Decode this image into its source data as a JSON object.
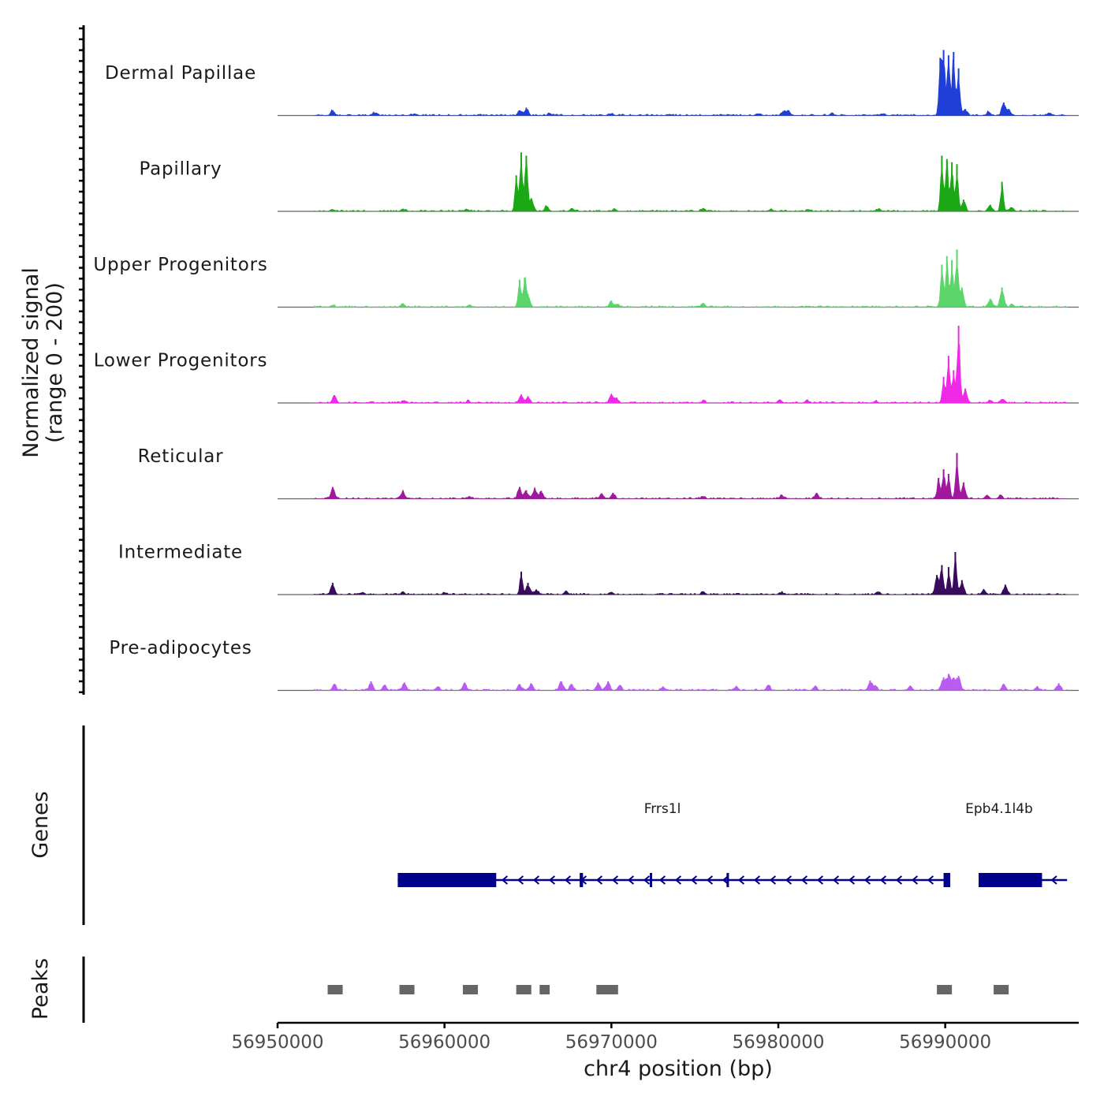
{
  "chart_data": {
    "type": "area",
    "title": "",
    "xlabel": "chr4 position (bp)",
    "ylabel_line1": "Normalized signal",
    "ylabel_line2": "(range 0 - 200)",
    "xlim": [
      56950000,
      56998000
    ],
    "ylim": [
      0,
      200
    ],
    "x_ticks": [
      "56950000",
      "56960000",
      "56970000",
      "56980000",
      "56990000"
    ],
    "x_tick_values": [
      56950000,
      56960000,
      56970000,
      56980000,
      56990000
    ],
    "data_extent": [
      56952200,
      56997300
    ],
    "tracks": [
      {
        "name": "Dermal Papillae",
        "color": "#1f3fd6",
        "peaks": [
          [
            56953300,
            8
          ],
          [
            56955800,
            4
          ],
          [
            56958200,
            3
          ],
          [
            56964500,
            8
          ],
          [
            56964900,
            12
          ],
          [
            56966300,
            4
          ],
          [
            56970000,
            3
          ],
          [
            56973500,
            2
          ],
          [
            56978800,
            3
          ],
          [
            56980300,
            7
          ],
          [
            56980600,
            8
          ],
          [
            56983200,
            3
          ],
          [
            56986200,
            3
          ],
          [
            56989700,
            88
          ],
          [
            56989900,
            100
          ],
          [
            56990200,
            92
          ],
          [
            56990500,
            97
          ],
          [
            56990800,
            72
          ],
          [
            56991200,
            10
          ],
          [
            56992600,
            6
          ],
          [
            56993500,
            20
          ],
          [
            56993800,
            10
          ],
          [
            56996200,
            3
          ]
        ]
      },
      {
        "name": "Papillary",
        "color": "#1ca814",
        "peaks": [
          [
            56953300,
            3
          ],
          [
            56957500,
            4
          ],
          [
            56961400,
            3
          ],
          [
            56964300,
            55
          ],
          [
            56964600,
            90
          ],
          [
            56964900,
            85
          ],
          [
            56965200,
            20
          ],
          [
            56966100,
            8
          ],
          [
            56967600,
            4
          ],
          [
            56970200,
            4
          ],
          [
            56975500,
            5
          ],
          [
            56979600,
            3
          ],
          [
            56981800,
            3
          ],
          [
            56986000,
            3
          ],
          [
            56989800,
            85
          ],
          [
            56990100,
            80
          ],
          [
            56990400,
            75
          ],
          [
            56990700,
            72
          ],
          [
            56991100,
            18
          ],
          [
            56992700,
            10
          ],
          [
            56993400,
            45
          ],
          [
            56994000,
            6
          ]
        ]
      },
      {
        "name": "Upper Progenitors",
        "color": "#5cd66a",
        "peaks": [
          [
            56953300,
            3
          ],
          [
            56957500,
            6
          ],
          [
            56961500,
            4
          ],
          [
            56964500,
            42
          ],
          [
            56964800,
            45
          ],
          [
            56965000,
            20
          ],
          [
            56970000,
            10
          ],
          [
            56970400,
            5
          ],
          [
            56975500,
            6
          ],
          [
            56989800,
            65
          ],
          [
            56990100,
            78
          ],
          [
            56990400,
            72
          ],
          [
            56990700,
            88
          ],
          [
            56991000,
            30
          ],
          [
            56992700,
            13
          ],
          [
            56993400,
            30
          ],
          [
            56994000,
            5
          ]
        ]
      },
      {
        "name": "Lower Progenitors",
        "color": "#f028e8",
        "peaks": [
          [
            56953400,
            12
          ],
          [
            56957600,
            4
          ],
          [
            56961400,
            3
          ],
          [
            56964600,
            13
          ],
          [
            56965000,
            10
          ],
          [
            56970000,
            12
          ],
          [
            56970300,
            8
          ],
          [
            56975500,
            3
          ],
          [
            56980100,
            5
          ],
          [
            56981700,
            4
          ],
          [
            56985800,
            3
          ],
          [
            56989900,
            40
          ],
          [
            56990200,
            72
          ],
          [
            56990500,
            50
          ],
          [
            56990800,
            118
          ],
          [
            56991200,
            22
          ],
          [
            56992700,
            4
          ],
          [
            56993400,
            6
          ]
        ]
      },
      {
        "name": "Reticular",
        "color": "#a0189e",
        "peaks": [
          [
            56953300,
            18
          ],
          [
            56957500,
            12
          ],
          [
            56961500,
            4
          ],
          [
            56964500,
            18
          ],
          [
            56964900,
            13
          ],
          [
            56965400,
            16
          ],
          [
            56965800,
            12
          ],
          [
            56969400,
            8
          ],
          [
            56970100,
            9
          ],
          [
            56975500,
            4
          ],
          [
            56980200,
            6
          ],
          [
            56982300,
            8
          ],
          [
            56989600,
            32
          ],
          [
            56989900,
            45
          ],
          [
            56990200,
            38
          ],
          [
            56990700,
            70
          ],
          [
            56991100,
            25
          ],
          [
            56992500,
            6
          ],
          [
            56993300,
            5
          ]
        ]
      },
      {
        "name": "Intermediate",
        "color": "#3a0a5e",
        "peaks": [
          [
            56953300,
            18
          ],
          [
            56955000,
            3
          ],
          [
            56957500,
            3
          ],
          [
            56960000,
            3
          ],
          [
            56964600,
            35
          ],
          [
            56965000,
            18
          ],
          [
            56965500,
            8
          ],
          [
            56967300,
            5
          ],
          [
            56970000,
            4
          ],
          [
            56975500,
            5
          ],
          [
            56980200,
            3
          ],
          [
            56986000,
            3
          ],
          [
            56989500,
            30
          ],
          [
            56989800,
            45
          ],
          [
            56990200,
            42
          ],
          [
            56990600,
            65
          ],
          [
            56991000,
            22
          ],
          [
            56992300,
            8
          ],
          [
            56993600,
            15
          ]
        ]
      },
      {
        "name": "Pre-adipocytes",
        "color": "#b95cf0",
        "peaks": [
          [
            56953400,
            10
          ],
          [
            56955600,
            14
          ],
          [
            56956400,
            8
          ],
          [
            56957600,
            12
          ],
          [
            56959600,
            6
          ],
          [
            56961200,
            12
          ],
          [
            56964500,
            9
          ],
          [
            56965200,
            10
          ],
          [
            56967000,
            14
          ],
          [
            56967600,
            10
          ],
          [
            56969200,
            12
          ],
          [
            56969800,
            14
          ],
          [
            56970500,
            8
          ],
          [
            56973100,
            6
          ],
          [
            56977500,
            6
          ],
          [
            56979400,
            8
          ],
          [
            56982200,
            7
          ],
          [
            56985500,
            15
          ],
          [
            56985800,
            8
          ],
          [
            56987900,
            7
          ],
          [
            56989900,
            20
          ],
          [
            56990200,
            25
          ],
          [
            56990500,
            18
          ],
          [
            56990800,
            22
          ],
          [
            56993500,
            10
          ],
          [
            56995500,
            6
          ],
          [
            56996800,
            11
          ]
        ]
      }
    ],
    "genes": {
      "label": "Genes",
      "items": [
        {
          "name": "Frrs1l",
          "strand": "-",
          "start": 56957200,
          "end": 56990300,
          "exons": [
            [
              56957200,
              56963100
            ],
            [
              56968100,
              56968300
            ],
            [
              56972300,
              56972400
            ],
            [
              56976900,
              56977000
            ],
            [
              56989900,
              56990300
            ]
          ]
        },
        {
          "name": "Epb4.1l4b",
          "strand": "-",
          "start": 56992000,
          "end": 56997300,
          "exons": [
            [
              56992000,
              56995800
            ]
          ]
        }
      ]
    },
    "peaks_track": {
      "label": "Peaks",
      "regions": [
        [
          56953000,
          56953900
        ],
        [
          56957300,
          56958200
        ],
        [
          56961100,
          56962000
        ],
        [
          56964300,
          56965200
        ],
        [
          56965700,
          56966300
        ],
        [
          56969100,
          56970400
        ],
        [
          56989500,
          56990400
        ],
        [
          56992900,
          56993800
        ]
      ]
    }
  }
}
